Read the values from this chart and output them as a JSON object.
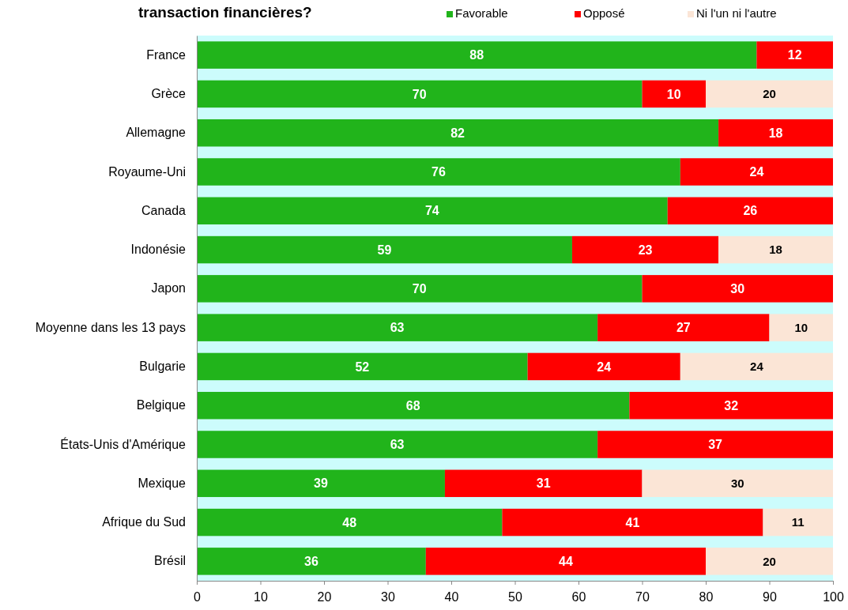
{
  "chart_data": {
    "type": "bar",
    "orientation": "horizontal",
    "stacked": true,
    "title": "transaction financières?",
    "categories": [
      "France",
      "Grèce",
      "Allemagne",
      "Royaume-Uni",
      "Canada",
      "Indonésie",
      "Japon",
      "Moyenne dans les 13 pays",
      "Bulgarie",
      "Belgique",
      "États-Unis d'Amérique",
      "Mexique",
      "Afrique du Sud",
      "Brésil"
    ],
    "series": [
      {
        "name": "Favorable",
        "color": "#21b41b",
        "values": [
          88,
          70,
          82,
          76,
          74,
          59,
          70,
          63,
          52,
          68,
          63,
          39,
          48,
          36
        ]
      },
      {
        "name": "Opposé",
        "color": "#ff0000",
        "values": [
          12,
          10,
          18,
          24,
          26,
          23,
          30,
          27,
          24,
          32,
          37,
          31,
          41,
          44
        ]
      },
      {
        "name": "Ni l'un ni l'autre",
        "color": "#fbe5d6",
        "values": [
          null,
          20,
          null,
          null,
          null,
          18,
          null,
          10,
          24,
          null,
          null,
          30,
          11,
          20
        ]
      }
    ],
    "xlim": [
      0,
      100
    ],
    "xticks": [
      0,
      10,
      20,
      30,
      40,
      50,
      60,
      70,
      80,
      90,
      100
    ],
    "bands": [
      {
        "axis": "x",
        "from": 0,
        "to": 100,
        "color": "#ccfcfc"
      }
    ],
    "data_labels": true,
    "legend": "top right",
    "grid": false
  }
}
